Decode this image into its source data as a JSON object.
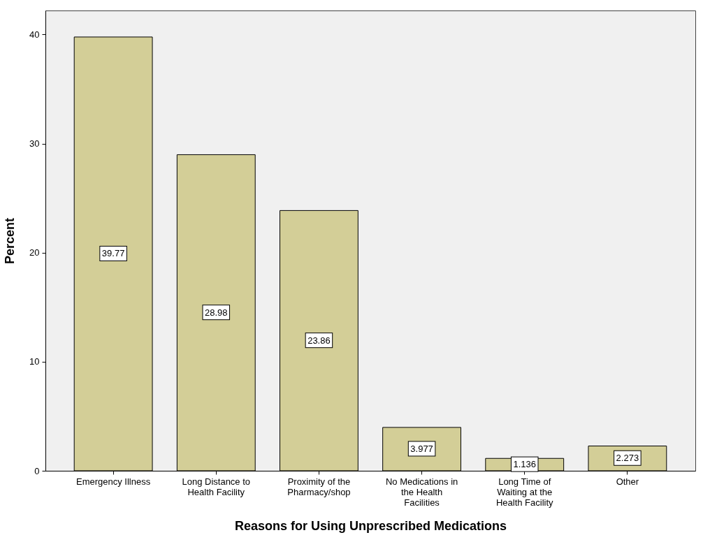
{
  "chart_data": {
    "type": "bar",
    "xlabel": "Reasons for Using Unprescribed Medications",
    "ylabel": "Percent",
    "categories": [
      "Emergency Illness",
      "Long Distance to Health Facility",
      "Proximity of the Pharmacy/shop",
      "No Medications in the Health Facilities",
      "Long Time of Waiting at the Health Facility",
      "Other"
    ],
    "values": [
      39.77,
      28.98,
      23.86,
      3.977,
      1.136,
      2.273
    ],
    "color": "#d3ce97",
    "ylim": [
      0,
      42.2
    ],
    "yticks": [
      0,
      10,
      20,
      30,
      40
    ],
    "grid": false,
    "data_labels": true
  }
}
